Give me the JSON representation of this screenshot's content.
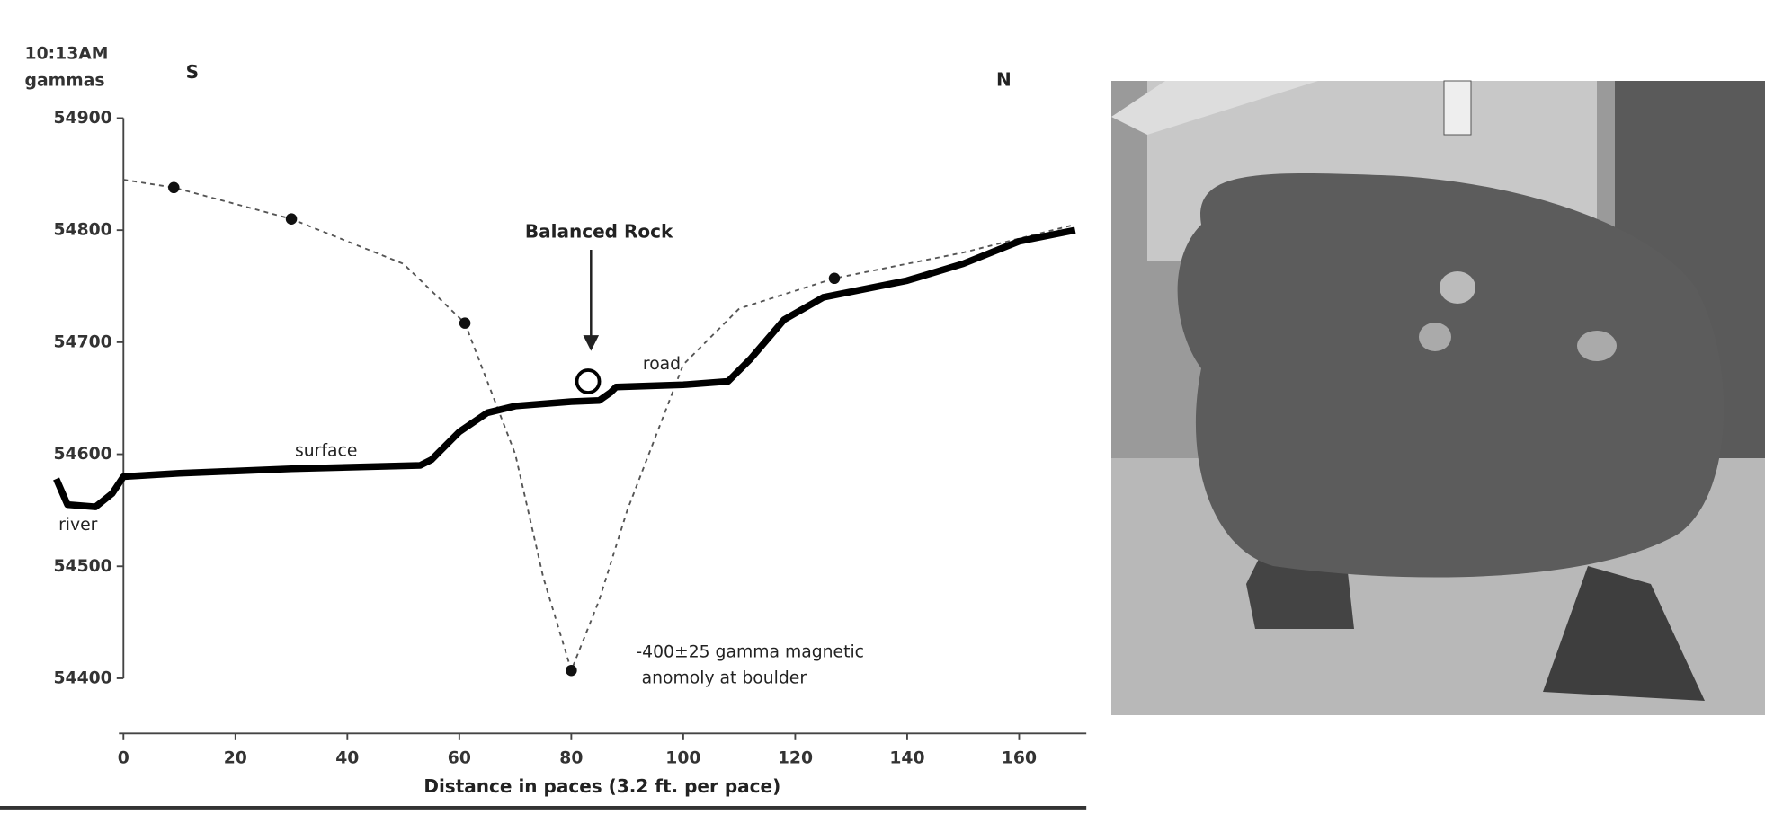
{
  "chart_data": {
    "type": "line",
    "time_label": "10:13AM",
    "ylabel": "gammas",
    "left_label": "S",
    "right_label": "N",
    "xlabel": "Distance in paces (3.2 ft. per pace)",
    "xlim": [
      -13,
      172
    ],
    "ylim": [
      54400,
      54900
    ],
    "xticks": [
      0,
      20,
      40,
      60,
      80,
      100,
      120,
      140,
      160
    ],
    "yticks": [
      54400,
      54500,
      54600,
      54700,
      54800,
      54900
    ],
    "series": [
      {
        "color": "#555555",
        "style": "dashed",
        "x": [
          0,
          9,
          30,
          50,
          61,
          70,
          75,
          80,
          85,
          90,
          100,
          110,
          127,
          150,
          170
        ],
        "values": [
          54845,
          54838,
          54810,
          54770,
          54717,
          54600,
          54490,
          54407,
          54470,
          54550,
          54680,
          54730,
          54757,
          54780,
          54805
        ]
      },
      {
        "color": "#111111",
        "style": "dots",
        "x": [
          9,
          30,
          61,
          80,
          127
        ],
        "values": [
          54838,
          54810,
          54717,
          54407,
          54757
        ]
      },
      {
        "color": "#000000",
        "style": "thick",
        "x": [
          -12,
          -10,
          -5,
          -2,
          0,
          10,
          30,
          53,
          55,
          60,
          65,
          70,
          80,
          85,
          87,
          88,
          100,
          108,
          112,
          118,
          125,
          140,
          150,
          160,
          170
        ],
        "values": [
          54578,
          54555,
          54553,
          54565,
          54580,
          54583,
          54587,
          54590,
          54595,
          54620,
          54637,
          54643,
          54647,
          54648,
          54655,
          54660,
          54662,
          54665,
          54685,
          54720,
          54740,
          54755,
          54770,
          54790,
          54800
        ]
      },
      {
        "color": "#000000",
        "style": "open-circle",
        "x": [
          83
        ],
        "values": [
          54665
        ]
      }
    ],
    "annotations": [
      "Balanced Rock",
      "road",
      "surface",
      "river",
      "-400±25 gamma magnetic",
      "anomoly at boulder"
    ]
  }
}
